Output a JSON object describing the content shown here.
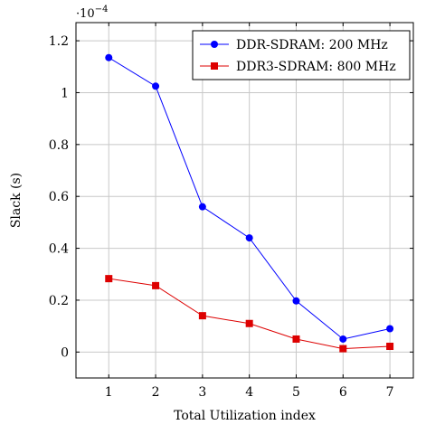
{
  "chart_data": {
    "type": "line",
    "xlabel": "Total Utilization index",
    "ylabel": "Slack (s)",
    "y_exponent_label": "·10",
    "y_exponent_power": "−4",
    "x_ticks": [
      "1",
      "2",
      "3",
      "4",
      "5",
      "6",
      "7"
    ],
    "y_ticks": [
      "0",
      "0.2",
      "0.4",
      "0.6",
      "0.8",
      "1",
      "1.2"
    ],
    "xlim": [
      0.3,
      7.5
    ],
    "ylim": [
      -0.1,
      1.27
    ],
    "grid": true,
    "legend_position": "top-right",
    "series": [
      {
        "name": "DDR-SDRAM: 200 MHz",
        "color": "#0000ff",
        "marker": "circle",
        "x": [
          1,
          2,
          3,
          4,
          5,
          6,
          7
        ],
        "values": [
          1.135,
          1.025,
          0.56,
          0.44,
          0.197,
          0.05,
          0.09
        ]
      },
      {
        "name": "DDR3-SDRAM: 800 MHz",
        "color": "#dd0000",
        "marker": "square",
        "x": [
          1,
          2,
          3,
          4,
          5,
          6,
          7
        ],
        "values": [
          0.283,
          0.256,
          0.14,
          0.11,
          0.05,
          0.013,
          0.022
        ]
      }
    ]
  }
}
